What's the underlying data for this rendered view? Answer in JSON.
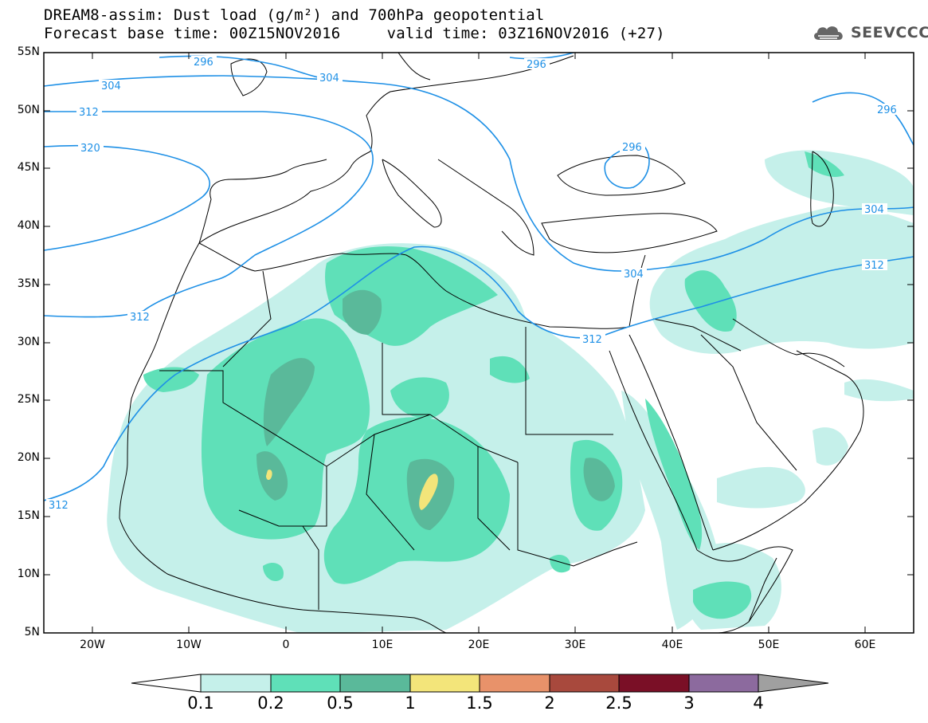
{
  "header": {
    "title_line1": "DREAM8-assim: Dust load (g/m²) and 700hPa geopotential",
    "title_line2": "Forecast base time: 00Z15NOV2016     valid time: 03Z16NOV2016 (+27)",
    "logo_text": "SEEVCCC",
    "logo_icon": "cloud-icon"
  },
  "map": {
    "lat_ticks": [
      "55N",
      "50N",
      "45N",
      "40N",
      "35N",
      "30N",
      "25N",
      "20N",
      "15N",
      "10N",
      "5N"
    ],
    "lon_ticks": [
      "20W",
      "10W",
      "0",
      "10E",
      "20E",
      "30E",
      "40E",
      "50E",
      "60E"
    ],
    "geopotential_contours": [
      {
        "label": "296"
      },
      {
        "label": "304"
      },
      {
        "label": "312"
      },
      {
        "label": "320"
      }
    ],
    "contour_color": "#1e90e6",
    "coast_color": "#000000"
  },
  "colorbar": {
    "levels": [
      "0.1",
      "0.2",
      "0.5",
      "1",
      "1.5",
      "2",
      "2.5",
      "3",
      "4"
    ],
    "colors": [
      "#c5f0ea",
      "#5fe0b8",
      "#5ab99a",
      "#f3e57a",
      "#e8926a",
      "#a8493d",
      "#7a0f26",
      "#8c6a9e",
      "#a0a0a0"
    ]
  }
}
